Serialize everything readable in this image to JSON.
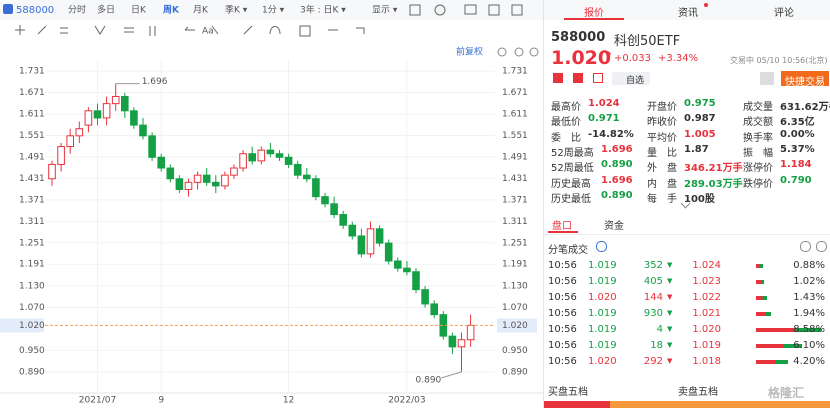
{
  "toolbar": {
    "code": "588000",
    "tabs": [
      "分时",
      "多日",
      "日K",
      "周K",
      "月K",
      "季K ▾",
      "1分 ▾",
      "3年 : 日K ▾",
      "显示 ▾"
    ],
    "active_tab": 3,
    "tools_text": "Aa",
    "adjust": "前复权"
  },
  "chart_data": {
    "type": "candlestick",
    "categories": [
      null,
      null,
      null,
      null,
      null,
      "2021/07",
      null,
      null,
      null,
      null,
      null,
      null,
      "9",
      null,
      null,
      null,
      null,
      null,
      null,
      null,
      null,
      null,
      null,
      null,
      null,
      null,
      "12",
      null,
      null,
      null,
      null,
      null,
      null,
      null,
      null,
      null,
      null,
      null,
      null,
      "2022/03",
      null,
      null,
      null,
      null,
      null,
      null,
      null
    ],
    "open": [
      1.43,
      1.47,
      1.52,
      1.55,
      1.58,
      1.62,
      1.6,
      1.64,
      1.66,
      1.62,
      1.58,
      1.55,
      1.49,
      1.46,
      1.43,
      1.4,
      1.42,
      1.44,
      1.42,
      1.41,
      1.44,
      1.46,
      1.5,
      1.48,
      1.51,
      1.5,
      1.49,
      1.47,
      1.44,
      1.43,
      1.38,
      1.36,
      1.33,
      1.3,
      1.27,
      1.22,
      1.29,
      1.25,
      1.2,
      1.18,
      1.17,
      1.12,
      1.08,
      1.05,
      0.99,
      0.96,
      0.98
    ],
    "high": [
      1.48,
      1.53,
      1.57,
      1.59,
      1.63,
      1.64,
      1.66,
      1.696,
      1.67,
      1.63,
      1.6,
      1.56,
      1.5,
      1.47,
      1.44,
      1.43,
      1.45,
      1.46,
      1.44,
      1.45,
      1.47,
      1.51,
      1.52,
      1.52,
      1.53,
      1.51,
      1.5,
      1.48,
      1.46,
      1.44,
      1.39,
      1.38,
      1.34,
      1.31,
      1.29,
      1.31,
      1.3,
      1.26,
      1.21,
      1.2,
      1.18,
      1.13,
      1.09,
      1.06,
      1.0,
      1.0,
      1.05
    ],
    "low": [
      1.41,
      1.45,
      1.5,
      1.53,
      1.56,
      1.58,
      1.58,
      1.62,
      1.6,
      1.57,
      1.54,
      1.48,
      1.45,
      1.42,
      1.39,
      1.38,
      1.4,
      1.41,
      1.39,
      1.4,
      1.43,
      1.45,
      1.47,
      1.47,
      1.49,
      1.48,
      1.46,
      1.43,
      1.42,
      1.37,
      1.35,
      1.32,
      1.29,
      1.26,
      1.21,
      1.21,
      1.24,
      1.19,
      1.17,
      1.16,
      1.11,
      1.07,
      1.04,
      0.98,
      0.94,
      0.89,
      0.96
    ],
    "close": [
      1.47,
      1.52,
      1.55,
      1.57,
      1.62,
      1.6,
      1.64,
      1.66,
      1.62,
      1.58,
      1.55,
      1.49,
      1.46,
      1.43,
      1.4,
      1.42,
      1.44,
      1.42,
      1.41,
      1.44,
      1.46,
      1.5,
      1.48,
      1.51,
      1.5,
      1.49,
      1.47,
      1.44,
      1.43,
      1.38,
      1.36,
      1.33,
      1.3,
      1.27,
      1.22,
      1.29,
      1.25,
      1.2,
      1.18,
      1.17,
      1.12,
      1.08,
      1.05,
      0.99,
      0.96,
      0.98,
      1.02
    ],
    "ylim": [
      0.831,
      1.762
    ],
    "yticks": [
      1.731,
      1.671,
      1.611,
      1.551,
      1.491,
      1.431,
      1.371,
      1.311,
      1.251,
      1.191,
      {
        "value": 1.13,
        "label": "1.130"
      },
      {
        "value": 1.07,
        "label": "1.070"
      },
      {
        "value": 0.95,
        "label": "0.950"
      },
      {
        "value": 0.89,
        "label": "0.890"
      }
    ],
    "current_price": {
      "value": 1.02,
      "label": "1.020"
    },
    "high_label": "1.696",
    "low_label": "0.890",
    "up_color": "#e8333c",
    "down_color": "#15a046",
    "grid": true
  },
  "panel": {
    "tabs": [
      "报价",
      "资讯",
      "评论"
    ],
    "code": "588000",
    "name": "科创50ETF",
    "price": "1.020",
    "arrow": "↑",
    "change": "+0.033",
    "change_pct": "+3.34%",
    "status": "交易中 05/10 10:56(北京)",
    "watch": "自选",
    "trade": "快捷交易",
    "stats": [
      [
        {
          "label": "最高价",
          "value": "1.024",
          "color": "#e8333c"
        },
        {
          "label": "最低价",
          "value": "0.971",
          "color": "#15a046"
        },
        {
          "label": "委　比",
          "value": "-14.82%",
          "color": "#333333"
        },
        {
          "label": "52周最高",
          "value": "1.696",
          "color": "#e8333c"
        },
        {
          "label": "52周最低",
          "value": "0.890",
          "color": "#15a046"
        },
        {
          "label": "历史最高",
          "value": "1.696",
          "color": "#e8333c"
        },
        {
          "label": "历史最低",
          "value": "0.890",
          "color": "#15a046"
        }
      ],
      [
        {
          "label": "开盘价",
          "value": "0.975",
          "color": "#15a046"
        },
        {
          "label": "昨收价",
          "value": "0.987",
          "color": "#333333"
        },
        {
          "label": "平均价",
          "value": "1.005",
          "color": "#e8333c"
        },
        {
          "label": "量　比",
          "value": "1.87",
          "color": "#333333"
        },
        {
          "label": "外　盘",
          "value": "346.21万手",
          "color": "#e8333c"
        },
        {
          "label": "内　盘",
          "value": "289.03万手",
          "color": "#15a046"
        },
        {
          "label": "每　手",
          "value": "100股",
          "color": "#333333"
        }
      ],
      [
        {
          "label": "成交量",
          "value": "631.62万手",
          "color": "#333333"
        },
        {
          "label": "成交额",
          "value": "6.35亿",
          "color": "#333333"
        },
        {
          "label": "换手率",
          "value": "0.00%",
          "color": "#333333"
        },
        {
          "label": "振　幅",
          "value": "5.37%",
          "color": "#333333"
        },
        {
          "label": "涨停价",
          "value": "1.184",
          "color": "#e8333c"
        },
        {
          "label": "跌停价",
          "value": "0.790",
          "color": "#15a046"
        }
      ]
    ],
    "subtabs": [
      "盘口",
      "资金"
    ],
    "ticks_title": "分笔成交",
    "trade_arrow": "▼",
    "trades": [
      {
        "time": "10:56",
        "price": "1.019",
        "volume": "352",
        "color": "#15a046"
      },
      {
        "time": "10:56",
        "price": "1.019",
        "volume": "405",
        "color": "#15a046"
      },
      {
        "time": "10:56",
        "price": "1.020",
        "volume": "144",
        "color": "#e8333c"
      },
      {
        "time": "10:56",
        "price": "1.019",
        "volume": "930",
        "color": "#15a046"
      },
      {
        "time": "10:56",
        "price": "1.019",
        "volume": "4",
        "color": "#15a046"
      },
      {
        "time": "10:56",
        "price": "1.019",
        "volume": "18",
        "color": "#15a046"
      },
      {
        "time": "10:56",
        "price": "1.020",
        "volume": "292",
        "color": "#e8333c"
      }
    ],
    "distribution": [
      {
        "price": "1.024",
        "pct": 0.88,
        "label": "0.88%"
      },
      {
        "price": "1.023",
        "pct": 1.02,
        "label": "1.02%"
      },
      {
        "price": "1.022",
        "pct": 1.43,
        "label": "1.43%"
      },
      {
        "price": "1.021",
        "pct": 1.94,
        "label": "1.94%"
      },
      {
        "price": "1.020",
        "pct": 8.58,
        "label": "8.58%"
      },
      {
        "price": "1.019",
        "pct": 6.1,
        "label": "6.10%"
      },
      {
        "price": "1.018",
        "pct": 4.2,
        "label": "4.20%"
      }
    ],
    "book": [
      "买盘五档",
      "卖盘五档"
    ],
    "watermark": "格隆汇"
  }
}
